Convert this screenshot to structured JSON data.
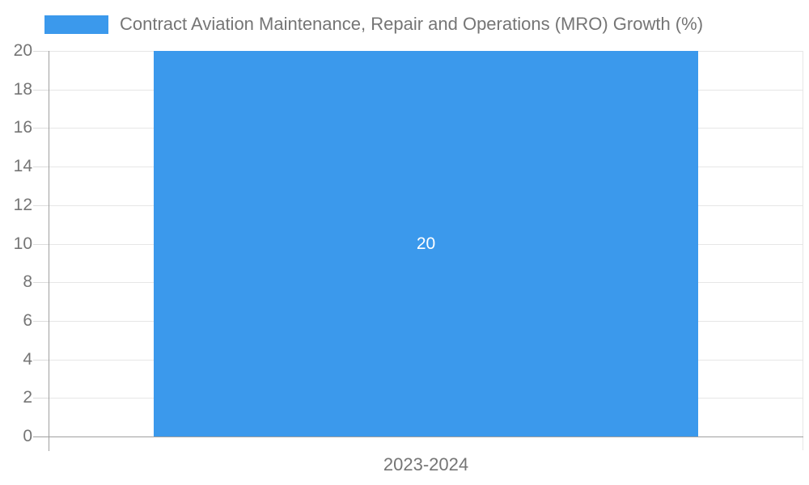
{
  "chart_data": {
    "type": "bar",
    "title": "",
    "legend": {
      "label": "Contract Aviation Maintenance, Repair and Operations (MRO) Growth (%)",
      "position": "top-left"
    },
    "categories": [
      "2023-2024"
    ],
    "series": [
      {
        "name": "Contract Aviation Maintenance, Repair and Operations (MRO) Growth (%)",
        "values": [
          20
        ]
      }
    ],
    "value_labels": [
      "20"
    ],
    "xlabel": "",
    "ylabel": "",
    "ylim": [
      0,
      20
    ],
    "y_ticks": [
      0,
      2,
      4,
      6,
      8,
      10,
      12,
      14,
      16,
      18,
      20
    ],
    "grid": true,
    "legend_position": "top-left",
    "colors": {
      "bar": "#3B99EC",
      "axis": "#A0A0A0",
      "grid": "#E6E6E6",
      "tick": "#DCDCDC",
      "text": "#757575",
      "value_label": "#FFFFFF",
      "background": "#FFFFFF"
    }
  }
}
